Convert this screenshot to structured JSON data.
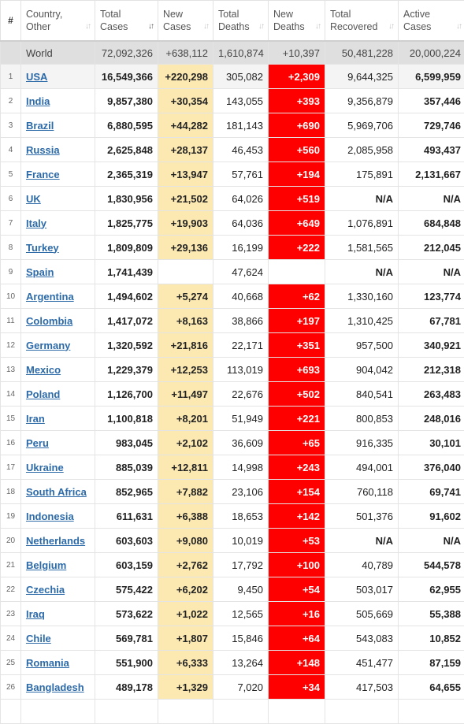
{
  "headers": {
    "hash": "#",
    "country": [
      "Country,",
      "Other"
    ],
    "total_cases": [
      "Total",
      "Cases"
    ],
    "new_cases": [
      "New",
      "Cases"
    ],
    "total_deaths": [
      "Total",
      "Deaths"
    ],
    "new_deaths": [
      "New",
      "Deaths"
    ],
    "total_recovered": [
      "Total",
      "Recovered"
    ],
    "active_cases": [
      "Active",
      "Cases"
    ],
    "sort_icon_default": "↓↑",
    "sort_icon_active": "↓↑"
  },
  "world": {
    "country": "World",
    "total_cases": "72,092,326",
    "new_cases": "+638,112",
    "total_deaths": "1,610,874",
    "new_deaths": "+10,397",
    "total_recovered": "50,481,228",
    "active_cases": "20,000,224"
  },
  "rows": [
    {
      "num": "1",
      "country": "USA",
      "total_cases": "16,549,366",
      "new_cases": "+220,298",
      "total_deaths": "305,082",
      "new_deaths": "+2,309",
      "total_recovered": "9,644,325",
      "active_cases": "6,599,959"
    },
    {
      "num": "2",
      "country": "India",
      "total_cases": "9,857,380",
      "new_cases": "+30,354",
      "total_deaths": "143,055",
      "new_deaths": "+393",
      "total_recovered": "9,356,879",
      "active_cases": "357,446"
    },
    {
      "num": "3",
      "country": "Brazil",
      "total_cases": "6,880,595",
      "new_cases": "+44,282",
      "total_deaths": "181,143",
      "new_deaths": "+690",
      "total_recovered": "5,969,706",
      "active_cases": "729,746"
    },
    {
      "num": "4",
      "country": "Russia",
      "total_cases": "2,625,848",
      "new_cases": "+28,137",
      "total_deaths": "46,453",
      "new_deaths": "+560",
      "total_recovered": "2,085,958",
      "active_cases": "493,437"
    },
    {
      "num": "5",
      "country": "France",
      "total_cases": "2,365,319",
      "new_cases": "+13,947",
      "total_deaths": "57,761",
      "new_deaths": "+194",
      "total_recovered": "175,891",
      "active_cases": "2,131,667"
    },
    {
      "num": "6",
      "country": "UK",
      "total_cases": "1,830,956",
      "new_cases": "+21,502",
      "total_deaths": "64,026",
      "new_deaths": "+519",
      "total_recovered": "N/A",
      "active_cases": "N/A"
    },
    {
      "num": "7",
      "country": "Italy",
      "total_cases": "1,825,775",
      "new_cases": "+19,903",
      "total_deaths": "64,036",
      "new_deaths": "+649",
      "total_recovered": "1,076,891",
      "active_cases": "684,848"
    },
    {
      "num": "8",
      "country": "Turkey",
      "total_cases": "1,809,809",
      "new_cases": "+29,136",
      "total_deaths": "16,199",
      "new_deaths": "+222",
      "total_recovered": "1,581,565",
      "active_cases": "212,045"
    },
    {
      "num": "9",
      "country": "Spain",
      "total_cases": "1,741,439",
      "new_cases": "",
      "total_deaths": "47,624",
      "new_deaths": "",
      "total_recovered": "N/A",
      "active_cases": "N/A"
    },
    {
      "num": "10",
      "country": "Argentina",
      "total_cases": "1,494,602",
      "new_cases": "+5,274",
      "total_deaths": "40,668",
      "new_deaths": "+62",
      "total_recovered": "1,330,160",
      "active_cases": "123,774"
    },
    {
      "num": "11",
      "country": "Colombia",
      "total_cases": "1,417,072",
      "new_cases": "+8,163",
      "total_deaths": "38,866",
      "new_deaths": "+197",
      "total_recovered": "1,310,425",
      "active_cases": "67,781"
    },
    {
      "num": "12",
      "country": "Germany",
      "total_cases": "1,320,592",
      "new_cases": "+21,816",
      "total_deaths": "22,171",
      "new_deaths": "+351",
      "total_recovered": "957,500",
      "active_cases": "340,921"
    },
    {
      "num": "13",
      "country": "Mexico",
      "total_cases": "1,229,379",
      "new_cases": "+12,253",
      "total_deaths": "113,019",
      "new_deaths": "+693",
      "total_recovered": "904,042",
      "active_cases": "212,318"
    },
    {
      "num": "14",
      "country": "Poland",
      "total_cases": "1,126,700",
      "new_cases": "+11,497",
      "total_deaths": "22,676",
      "new_deaths": "+502",
      "total_recovered": "840,541",
      "active_cases": "263,483"
    },
    {
      "num": "15",
      "country": "Iran",
      "total_cases": "1,100,818",
      "new_cases": "+8,201",
      "total_deaths": "51,949",
      "new_deaths": "+221",
      "total_recovered": "800,853",
      "active_cases": "248,016"
    },
    {
      "num": "16",
      "country": "Peru",
      "total_cases": "983,045",
      "new_cases": "+2,102",
      "total_deaths": "36,609",
      "new_deaths": "+65",
      "total_recovered": "916,335",
      "active_cases": "30,101"
    },
    {
      "num": "17",
      "country": "Ukraine",
      "total_cases": "885,039",
      "new_cases": "+12,811",
      "total_deaths": "14,998",
      "new_deaths": "+243",
      "total_recovered": "494,001",
      "active_cases": "376,040"
    },
    {
      "num": "18",
      "country": "South Africa",
      "total_cases": "852,965",
      "new_cases": "+7,882",
      "total_deaths": "23,106",
      "new_deaths": "+154",
      "total_recovered": "760,118",
      "active_cases": "69,741"
    },
    {
      "num": "19",
      "country": "Indonesia",
      "total_cases": "611,631",
      "new_cases": "+6,388",
      "total_deaths": "18,653",
      "new_deaths": "+142",
      "total_recovered": "501,376",
      "active_cases": "91,602"
    },
    {
      "num": "20",
      "country": "Netherlands",
      "total_cases": "603,603",
      "new_cases": "+9,080",
      "total_deaths": "10,019",
      "new_deaths": "+53",
      "total_recovered": "N/A",
      "active_cases": "N/A"
    },
    {
      "num": "21",
      "country": "Belgium",
      "total_cases": "603,159",
      "new_cases": "+2,762",
      "total_deaths": "17,792",
      "new_deaths": "+100",
      "total_recovered": "40,789",
      "active_cases": "544,578"
    },
    {
      "num": "22",
      "country": "Czechia",
      "total_cases": "575,422",
      "new_cases": "+6,202",
      "total_deaths": "9,450",
      "new_deaths": "+54",
      "total_recovered": "503,017",
      "active_cases": "62,955"
    },
    {
      "num": "23",
      "country": "Iraq",
      "total_cases": "573,622",
      "new_cases": "+1,022",
      "total_deaths": "12,565",
      "new_deaths": "+16",
      "total_recovered": "505,669",
      "active_cases": "55,388"
    },
    {
      "num": "24",
      "country": "Chile",
      "total_cases": "569,781",
      "new_cases": "+1,807",
      "total_deaths": "15,846",
      "new_deaths": "+64",
      "total_recovered": "543,083",
      "active_cases": "10,852"
    },
    {
      "num": "25",
      "country": "Romania",
      "total_cases": "551,900",
      "new_cases": "+6,333",
      "total_deaths": "13,264",
      "new_deaths": "+148",
      "total_recovered": "451,477",
      "active_cases": "87,159"
    },
    {
      "num": "26",
      "country": "Bangladesh",
      "total_cases": "489,178",
      "new_cases": "+1,329",
      "total_deaths": "7,020",
      "new_deaths": "+34",
      "total_recovered": "417,503",
      "active_cases": "64,655"
    },
    {
      "num": "",
      "country": "",
      "total_cases": "",
      "new_cases": "",
      "total_deaths": "",
      "new_deaths": "",
      "total_recovered": "",
      "active_cases": ""
    }
  ],
  "colors": {
    "new_cases_bg": "#fce9b2",
    "new_deaths_bg": "#ff0000",
    "world_row_bg": "#dfdfdf",
    "link": "#2c6aa8"
  }
}
